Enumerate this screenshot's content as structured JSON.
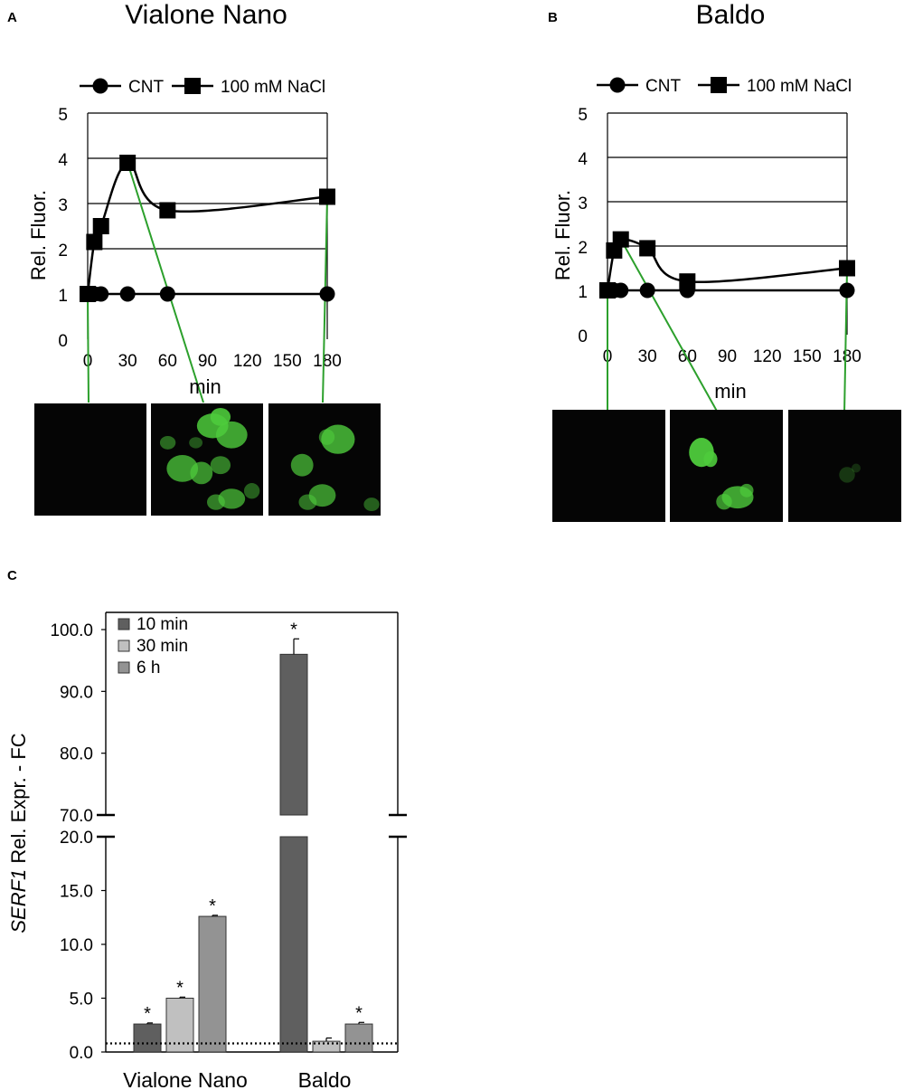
{
  "chart_data": [
    {
      "panel": "A",
      "type": "line",
      "title": "Vialone Nano",
      "xlabel": "min",
      "ylabel": "Rel. Fluor.",
      "xlim": [
        0,
        180
      ],
      "ylim": [
        0,
        5
      ],
      "xticks": [
        "0",
        "30",
        "60",
        "90",
        "120",
        "150",
        "180"
      ],
      "yticks": [
        "0",
        "1",
        "2",
        "3",
        "4",
        "5"
      ],
      "grid": "horizontal",
      "legend": "top",
      "series": [
        {
          "name": "CNT",
          "marker": "circle",
          "x": [
            0,
            5,
            10,
            30,
            60,
            180
          ],
          "y": [
            1,
            1,
            1,
            1,
            1,
            1
          ]
        },
        {
          "name": "100 mM NaCl",
          "marker": "square",
          "x": [
            0,
            5,
            10,
            30,
            60,
            180
          ],
          "y": [
            1,
            2.15,
            2.5,
            3.9,
            2.85,
            3.15
          ]
        }
      ],
      "images": [
        {
          "time": 0,
          "signal": "none"
        },
        {
          "time": 30,
          "signal": "strong"
        },
        {
          "time": 180,
          "signal": "moderate"
        }
      ]
    },
    {
      "panel": "B",
      "type": "line",
      "title": "Baldo",
      "xlabel": "min",
      "ylabel": "Rel. Fluor.",
      "xlim": [
        0,
        180
      ],
      "ylim": [
        0,
        5
      ],
      "xticks": [
        "0",
        "30",
        "60",
        "90",
        "120",
        "150",
        "180"
      ],
      "yticks": [
        "0",
        "1",
        "2",
        "3",
        "4",
        "5"
      ],
      "grid": "horizontal",
      "legend": "top",
      "series": [
        {
          "name": "CNT",
          "marker": "circle",
          "x": [
            0,
            5,
            10,
            30,
            60,
            180
          ],
          "y": [
            1,
            1,
            1,
            1,
            1,
            1
          ]
        },
        {
          "name": "100 mM NaCl",
          "marker": "square",
          "x": [
            0,
            5,
            10,
            30,
            60,
            180
          ],
          "y": [
            1,
            1.9,
            2.15,
            1.95,
            1.2,
            1.5
          ]
        }
      ],
      "images": [
        {
          "time": 0,
          "signal": "none"
        },
        {
          "time": 10,
          "signal": "moderate"
        },
        {
          "time": 180,
          "signal": "faint"
        }
      ]
    },
    {
      "panel": "C",
      "type": "bar",
      "ylabel_italic": "SERF1",
      "ylabel_rest": " Rel. Expr. - FC",
      "categories": [
        "Vialone Nano",
        "Baldo"
      ],
      "series": [
        {
          "name": "10 min",
          "color": "#5f5f5f",
          "values": [
            2.6,
            96.0
          ],
          "errors": [
            0.1,
            2.5
          ],
          "significant": [
            true,
            true
          ]
        },
        {
          "name": "30 min",
          "color": "#c0c0c0",
          "values": [
            5.0,
            1.0
          ],
          "errors": [
            0.1,
            0.3
          ],
          "significant": [
            true,
            false
          ]
        },
        {
          "name": "6 h",
          "color": "#939393",
          "values": [
            12.6,
            2.6
          ],
          "errors": [
            0.1,
            0.15
          ],
          "significant": [
            true,
            true
          ]
        }
      ],
      "y_axis_break": true,
      "lower_segment": {
        "ylim": [
          0,
          20
        ],
        "yticks": [
          "0.0",
          "5.0",
          "10.0",
          "15.0",
          "20.0"
        ]
      },
      "upper_segment": {
        "ylim": [
          70,
          100
        ],
        "yticks": [
          "70.0",
          "80.0",
          "90.0",
          "100.0"
        ]
      },
      "reference_line": 0.8,
      "significance_marker": "*",
      "legend": "top-left"
    }
  ],
  "colors": {
    "marker_line": "#000000",
    "connector": "#2ca02c",
    "fluorescence": "#4ecb3c",
    "image_background": "#050505"
  }
}
